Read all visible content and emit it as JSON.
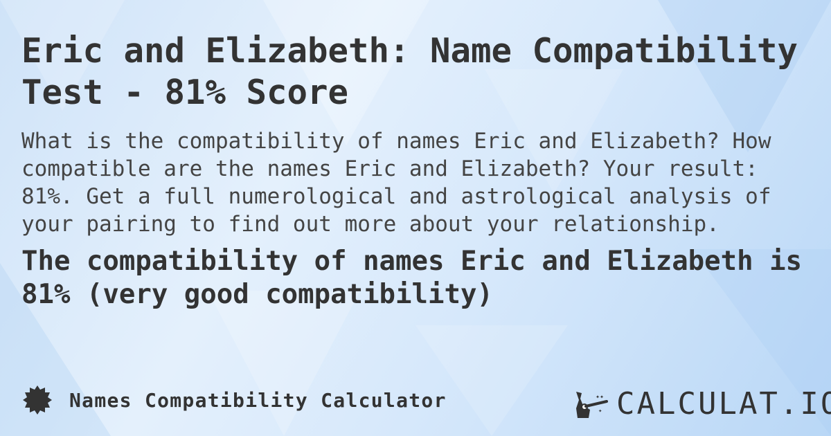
{
  "title": "Eric and Elizabeth: Name Compatibility Test - 81% Score",
  "description": "What is the compatibility of names Eric and Elizabeth? How compatible are the names Eric and Elizabeth? Your result: 81%. Get a full numerological and astrological analysis of your pairing to find out more about your relationship.",
  "result": "The compatibility of names Eric and Elizabeth is 81% (very good compatibility)",
  "footer": {
    "icon": "badge-icon",
    "calculator_name": "Names Compatibility Calculator"
  },
  "logo": {
    "icon": "magic-hand-wand-icon",
    "text": "CALCULAT.IO"
  },
  "colors": {
    "text": "#333333",
    "background": "#d6e8fb"
  }
}
